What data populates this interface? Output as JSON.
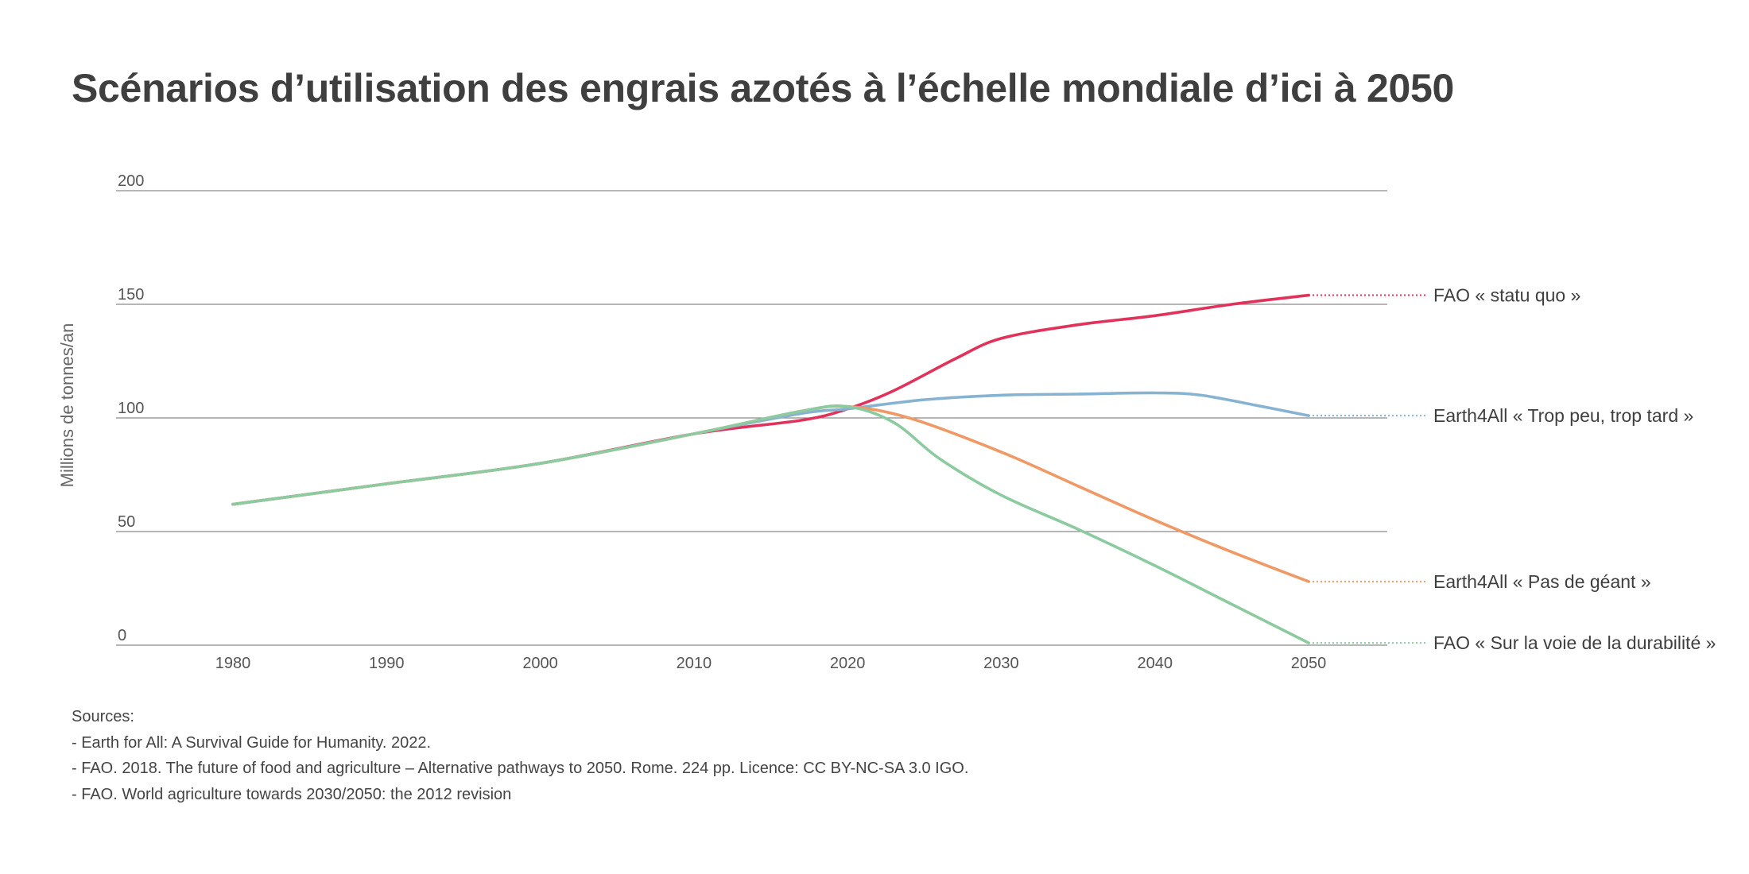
{
  "chart_data": {
    "type": "line",
    "title": "Scénarios d’utilisation des engrais azotés à l’échelle mondiale d’ici à 2050",
    "xlabel": "",
    "ylabel": "Millions de tonnes/an",
    "xlim": [
      1973,
      2055
    ],
    "ylim": [
      0,
      200
    ],
    "x_ticks": [
      1980,
      1990,
      2000,
      2010,
      2020,
      2030,
      2040,
      2050
    ],
    "y_ticks": [
      0,
      50,
      100,
      150,
      200
    ],
    "grid": true,
    "legend": "inline-right",
    "series": [
      {
        "name": "FAO « statu quo »",
        "color": "#e0325a",
        "points": [
          [
            1980,
            62
          ],
          [
            1990,
            71
          ],
          [
            2000,
            80
          ],
          [
            2010,
            93
          ],
          [
            2017,
            99
          ],
          [
            2020,
            104
          ],
          [
            2023,
            112
          ],
          [
            2027,
            126
          ],
          [
            2030,
            135
          ],
          [
            2035,
            141
          ],
          [
            2040,
            145
          ],
          [
            2045,
            150
          ],
          [
            2050,
            154
          ]
        ]
      },
      {
        "name": "Earth4All « Trop peu, trop tard »",
        "color": "#86b3d1",
        "points": [
          [
            1980,
            62
          ],
          [
            1990,
            71
          ],
          [
            2000,
            80
          ],
          [
            2010,
            93
          ],
          [
            2017,
            102
          ],
          [
            2020,
            104
          ],
          [
            2025,
            108
          ],
          [
            2030,
            110
          ],
          [
            2035,
            110.5
          ],
          [
            2040,
            111
          ],
          [
            2043,
            110
          ],
          [
            2047,
            105
          ],
          [
            2050,
            101
          ]
        ]
      },
      {
        "name": "Earth4All « Pas de géant »",
        "color": "#ef9a66",
        "points": [
          [
            1980,
            62
          ],
          [
            1990,
            71
          ],
          [
            2000,
            80
          ],
          [
            2010,
            93
          ],
          [
            2017,
            103
          ],
          [
            2020,
            105
          ],
          [
            2024,
            100
          ],
          [
            2030,
            85
          ],
          [
            2035,
            70
          ],
          [
            2040,
            55
          ],
          [
            2045,
            41
          ],
          [
            2050,
            28
          ]
        ]
      },
      {
        "name": "FAO « Sur la voie de la durabilité »",
        "color": "#8cca9f",
        "points": [
          [
            1980,
            62
          ],
          [
            1990,
            71
          ],
          [
            2000,
            80
          ],
          [
            2010,
            93
          ],
          [
            2017,
            103
          ],
          [
            2020,
            105
          ],
          [
            2023,
            98
          ],
          [
            2026,
            82
          ],
          [
            2030,
            66
          ],
          [
            2035,
            51
          ],
          [
            2040,
            35
          ],
          [
            2045,
            18
          ],
          [
            2050,
            1
          ]
        ]
      }
    ]
  },
  "sources": {
    "heading": "Sources:",
    "lines": [
      "- Earth for All: A Survival Guide for Humanity. 2022.",
      "- FAO. 2018. The future of food and agriculture – Alternative pathways to 2050. Rome. 224 pp. Licence: CC BY-NC-SA 3.0 IGO.",
      "- FAO. World agriculture towards 2030/2050: the 2012 revision"
    ]
  }
}
